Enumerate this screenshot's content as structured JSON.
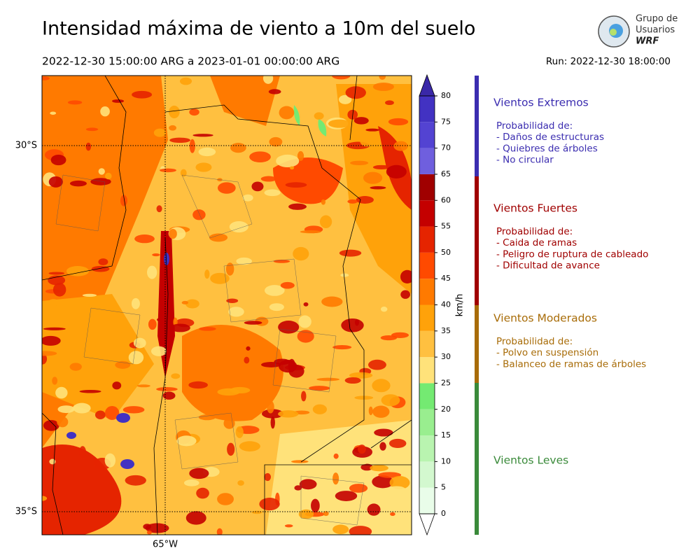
{
  "header": {
    "title": "Intensidad máxima de viento a 10m del suelo",
    "period": "2022-12-30 15:00:00 ARG  a  2023-01-01 00:00:00 ARG",
    "run": "Run: 2022-12-30 18:00:00"
  },
  "logo": {
    "lines": [
      "Grupo de",
      "Usuarios",
      "WRF"
    ]
  },
  "map": {
    "lat_labels": [
      "30°S",
      "35°S"
    ],
    "lon_labels": [
      "65°W"
    ]
  },
  "colorbar": {
    "label": "km/h",
    "lim": [
      0,
      80
    ],
    "ticks": [
      0,
      5,
      10,
      15,
      20,
      25,
      30,
      35,
      40,
      45,
      50,
      55,
      60,
      65,
      70,
      75,
      80
    ],
    "colors": [
      "#e9fde9",
      "#d3f8cf",
      "#b9f4b0",
      "#99ee8f",
      "#74ea72",
      "#ffe27a",
      "#ffc040",
      "#ffa20a",
      "#ff7a00",
      "#ff4a00",
      "#e52400",
      "#c40000",
      "#a00000",
      "#6f5fde",
      "#5343d2",
      "#4232c2"
    ],
    "over_color": "#3a28a8",
    "under_color": "#ffffff"
  },
  "legend": [
    {
      "title": "Vientos Extremos",
      "color": "#3b2db0",
      "heading": "Probabilidad de:",
      "items": [
        "- Daños de estructuras",
        "- Quiebres de árboles",
        "- No circular"
      ]
    },
    {
      "title": "Vientos Fuertes",
      "color": "#a00000",
      "heading": "Probabilidad de:",
      "items": [
        "- Caida de ramas",
        "- Peligro de ruptura de cableado",
        "- Dificultad de avance"
      ]
    },
    {
      "title": "Vientos Moderados",
      "color": "#a86c08",
      "heading": "Probabilidad de:",
      "items": [
        "- Polvo en suspensión",
        "- Balanceo de ramas de árboles"
      ]
    },
    {
      "title": "Vientos Leves",
      "color": "#3a8a3a"
    }
  ]
}
